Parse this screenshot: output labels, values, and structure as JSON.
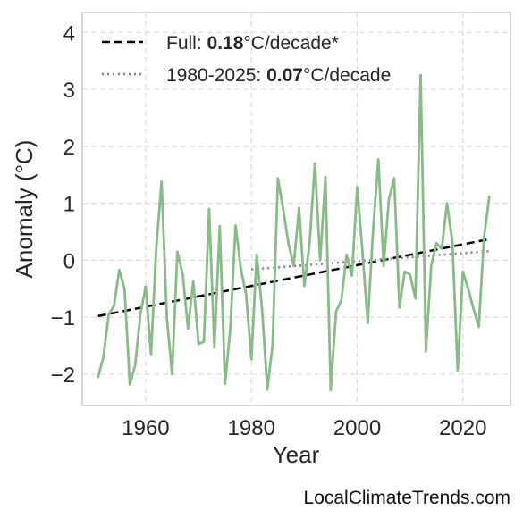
{
  "watermark": "LocalClimateTrends.com",
  "chart_data": {
    "type": "line",
    "title": "",
    "xlabel": "Year",
    "ylabel": "Anomaly (°C)",
    "xlim": [
      1948,
      2029
    ],
    "ylim": [
      -2.55,
      4.35
    ],
    "xticks": [
      1960,
      1980,
      2000,
      2020
    ],
    "yticks": [
      -2,
      -1,
      0,
      1,
      2,
      3,
      4
    ],
    "ytick_labels": [
      "−2",
      "−1",
      "0",
      "1",
      "2",
      "3",
      "4"
    ],
    "grid": true,
    "legend_position": "top-left",
    "colors": {
      "series": "#88bb88",
      "full_trend": "#000000",
      "recent_trend": "#808080",
      "grid": "#dddddd",
      "frame": "#cccccc"
    },
    "series": [
      {
        "x": [
          1951,
          1952,
          1953,
          1954,
          1955,
          1956,
          1957,
          1958,
          1959,
          1960,
          1961,
          1962,
          1963,
          1964,
          1965,
          1966,
          1967,
          1968,
          1969,
          1970,
          1971,
          1972,
          1973,
          1974,
          1975,
          1976,
          1977,
          1978,
          1979,
          1980,
          1981,
          1982,
          1983,
          1984,
          1985,
          1986,
          1987,
          1988,
          1989,
          1990,
          1991,
          1992,
          1993,
          1994,
          1995,
          1996,
          1997,
          1998,
          1999,
          2000,
          2001,
          2002,
          2003,
          2004,
          2005,
          2006,
          2007,
          2008,
          2009,
          2010,
          2011,
          2012,
          2013,
          2014,
          2015,
          2016,
          2017,
          2018,
          2019,
          2020,
          2021,
          2022,
          2023,
          2024,
          2025
        ],
        "values": [
          -2.05,
          -1.7,
          -0.95,
          -0.8,
          -0.17,
          -0.5,
          -2.18,
          -1.85,
          -0.95,
          -0.46,
          -1.66,
          0.22,
          1.38,
          -1.0,
          -2.0,
          0.15,
          -0.25,
          -1.2,
          -0.37,
          -1.47,
          -1.43,
          0.9,
          -1.53,
          0.6,
          -2.17,
          -1.2,
          0.61,
          -0.15,
          -0.6,
          -1.74,
          0.1,
          -0.85,
          -2.27,
          -1.48,
          1.44,
          0.9,
          0.3,
          -0.1,
          0.92,
          -0.45,
          0.3,
          1.7,
          0.0,
          1.46,
          -2.28,
          -0.9,
          -0.7,
          0.1,
          -0.27,
          1.28,
          0.16,
          -1.1,
          0.5,
          1.77,
          -0.1,
          1.07,
          1.44,
          -0.83,
          -0.2,
          -0.25,
          -0.67,
          3.25,
          -1.6,
          -0.1,
          0.3,
          0.2,
          1.0,
          0.32,
          -1.93,
          -0.2,
          -0.5,
          -0.85,
          -1.17,
          0.4,
          1.12
        ]
      }
    ],
    "trends": [
      {
        "style": "dashed",
        "x": [
          1951,
          2025
        ],
        "y": [
          -0.98,
          0.37
        ],
        "label_prefix": "Full: ",
        "label_value": "0.18",
        "label_suffix": "°C/decade*"
      },
      {
        "style": "dotted",
        "x": [
          1980,
          2025
        ],
        "y": [
          -0.16,
          0.16
        ],
        "label_prefix": "1980-2025: ",
        "label_value": "0.07",
        "label_suffix": "°C/decade"
      }
    ]
  }
}
